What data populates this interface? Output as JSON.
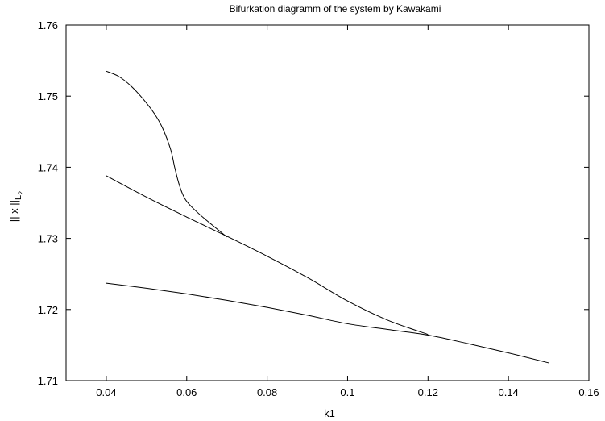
{
  "chart_data": {
    "type": "line",
    "title": "Bifurkation diagramm of the system by Kawakami",
    "xlabel": "k1",
    "ylabel": {
      "main": "|| x ||",
      "sub_L": "L",
      "sub_2": "2"
    },
    "xlim": [
      0.03,
      0.16
    ],
    "ylim": [
      1.71,
      1.76
    ],
    "x_ticks": [
      0.04,
      0.06,
      0.08,
      0.1,
      0.12,
      0.14,
      0.16
    ],
    "x_tick_labels": [
      "0.04",
      "0.06",
      "0.08",
      "0.1",
      "0.12",
      "0.14",
      "0.16"
    ],
    "y_ticks": [
      1.71,
      1.72,
      1.73,
      1.74,
      1.75,
      1.76
    ],
    "y_tick_labels": [
      "1.71",
      "1.72",
      "1.73",
      "1.74",
      "1.75",
      "1.76"
    ],
    "grid": false,
    "legend": "none",
    "series": [
      {
        "points": [
          [
            0.04,
            1.7535
          ],
          [
            0.043,
            1.7528
          ],
          [
            0.046,
            1.7515
          ],
          [
            0.049,
            1.7497
          ],
          [
            0.052,
            1.7475
          ],
          [
            0.054,
            1.7455
          ],
          [
            0.056,
            1.7425
          ],
          [
            0.057,
            1.74
          ],
          [
            0.058,
            1.7378
          ],
          [
            0.059,
            1.7362
          ],
          [
            0.06,
            1.7352
          ],
          [
            0.062,
            1.734
          ],
          [
            0.065,
            1.7325
          ],
          [
            0.07,
            1.7302
          ]
        ]
      },
      {
        "points": [
          [
            0.04,
            1.7388
          ],
          [
            0.05,
            1.7358
          ],
          [
            0.06,
            1.733
          ],
          [
            0.07,
            1.7303
          ],
          [
            0.08,
            1.7275
          ],
          [
            0.09,
            1.7245
          ],
          [
            0.1,
            1.7212
          ],
          [
            0.11,
            1.7185
          ],
          [
            0.12,
            1.7165
          ]
        ]
      },
      {
        "points": [
          [
            0.04,
            1.7237
          ],
          [
            0.05,
            1.723
          ],
          [
            0.06,
            1.7222
          ],
          [
            0.07,
            1.7213
          ],
          [
            0.08,
            1.7203
          ],
          [
            0.09,
            1.7192
          ],
          [
            0.1,
            1.718
          ],
          [
            0.11,
            1.7172
          ],
          [
            0.12,
            1.7164
          ],
          [
            0.13,
            1.7152
          ],
          [
            0.14,
            1.7139
          ],
          [
            0.15,
            1.7125
          ]
        ]
      }
    ]
  }
}
